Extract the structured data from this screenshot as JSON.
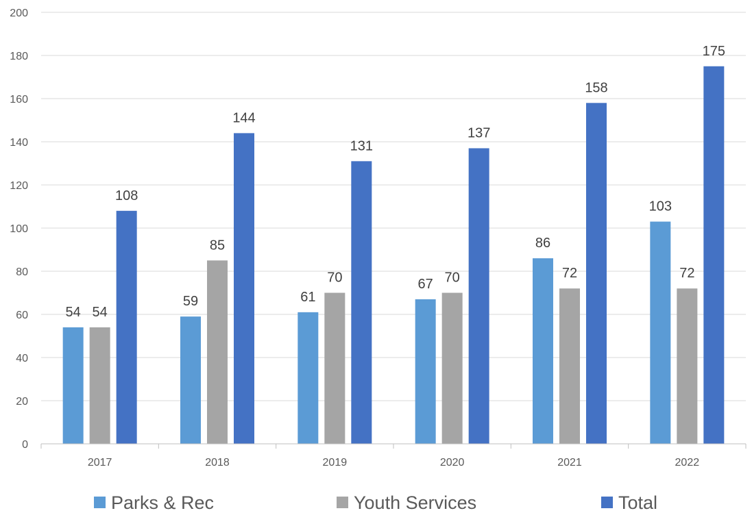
{
  "chart_data": {
    "type": "bar",
    "title": "",
    "xlabel": "",
    "ylabel": "",
    "categories": [
      "2017",
      "2018",
      "2019",
      "2020",
      "2021",
      "2022"
    ],
    "series": [
      {
        "name": "Parks & Rec",
        "color": "#5b9bd5",
        "values": [
          54,
          59,
          61,
          67,
          86,
          103
        ]
      },
      {
        "name": "Youth Services",
        "color": "#a5a5a5",
        "values": [
          54,
          85,
          70,
          70,
          72,
          72
        ]
      },
      {
        "name": "Total",
        "color": "#4472c4",
        "values": [
          108,
          144,
          131,
          137,
          158,
          175
        ]
      }
    ],
    "ylim": [
      0,
      200
    ],
    "yticks": [
      0,
      20,
      40,
      60,
      80,
      100,
      120,
      140,
      160,
      180,
      200
    ],
    "grid": true,
    "data_labels": true,
    "legend_position": "bottom"
  }
}
